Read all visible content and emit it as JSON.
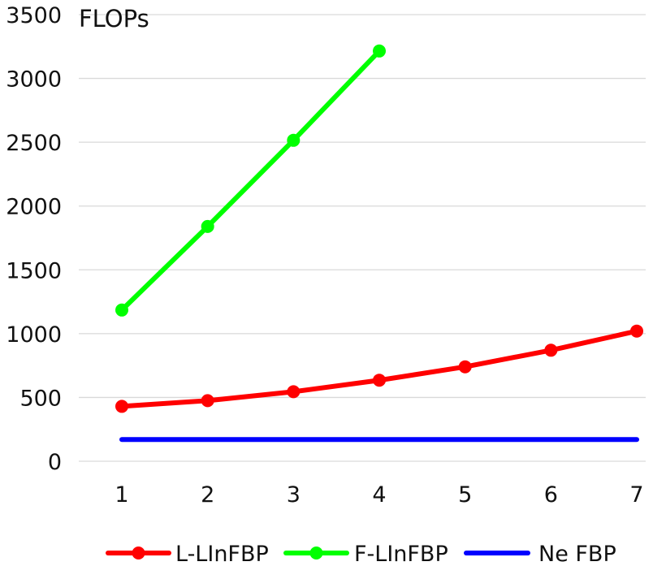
{
  "chart_data": {
    "type": "line",
    "title": "",
    "xlabel": "",
    "ylabel": "FLOPs",
    "x": [
      1,
      2,
      3,
      4,
      5,
      6,
      7
    ],
    "x_tick_labels": [
      "1",
      "2",
      "3",
      "4",
      "5",
      "6",
      "7"
    ],
    "ylim": [
      0,
      3500
    ],
    "y_ticks": [
      0,
      500,
      1000,
      1500,
      2000,
      2500,
      3000,
      3500
    ],
    "y_tick_labels": [
      "0",
      "500",
      "1000",
      "1500",
      "2000",
      "2500",
      "3000",
      "3500"
    ],
    "grid": "horizontal",
    "legend_position": "bottom",
    "series": [
      {
        "name": "L-LInFBP",
        "color": "#ff0000",
        "markers": true,
        "values": [
          430,
          475,
          545,
          635,
          740,
          870,
          1020
        ]
      },
      {
        "name": "F-LInFBP",
        "color": "#00ff00",
        "markers": true,
        "values": [
          1185,
          1840,
          2515,
          3215,
          null,
          null,
          null
        ]
      },
      {
        "name": "Ne FBP",
        "color": "#0000ff",
        "markers": false,
        "values": [
          170,
          170,
          170,
          170,
          170,
          170,
          170
        ]
      }
    ]
  }
}
